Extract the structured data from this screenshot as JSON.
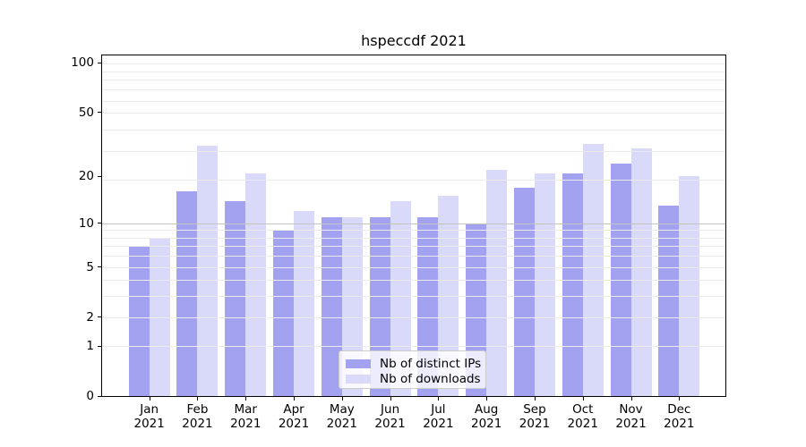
{
  "chart_data": {
    "type": "bar",
    "title": "hspeccdf 2021",
    "categories": [
      "Jan",
      "Feb",
      "Mar",
      "Apr",
      "May",
      "Jun",
      "Jul",
      "Aug",
      "Sep",
      "Oct",
      "Nov",
      "Dec"
    ],
    "year": "2021",
    "series": [
      {
        "name": "Nb of distinct IPs",
        "color": "#a2a2f0",
        "values": [
          7,
          16,
          14,
          9,
          11,
          11,
          11,
          10,
          17,
          21,
          24,
          13
        ]
      },
      {
        "name": "Nb of downloads",
        "color": "#d9d9fa",
        "values": [
          8,
          31,
          21,
          12,
          11,
          14,
          15,
          22,
          21,
          32,
          30,
          20
        ]
      }
    ],
    "yscale": "log1p",
    "y_ticks": [
      0,
      1,
      2,
      5,
      10,
      20,
      50,
      100
    ],
    "ylim": [
      0,
      112
    ],
    "grid": {
      "on": true,
      "light_lines_at": [
        1,
        2,
        3,
        4,
        5,
        6,
        7,
        8,
        9,
        19,
        29,
        39,
        50,
        59,
        69,
        79,
        89,
        99
      ],
      "dark_line_at": 10
    },
    "legend_position": "lower center"
  },
  "colors": {
    "ips_bar": "#a2a2f0",
    "downloads_bar": "#d9d9fa",
    "grid_light": "#ebebeb",
    "grid_dark": "#c3c3c3",
    "spine": "#000000",
    "text": "#000000",
    "legend_border": "#cccccc",
    "background": "#ffffff"
  }
}
